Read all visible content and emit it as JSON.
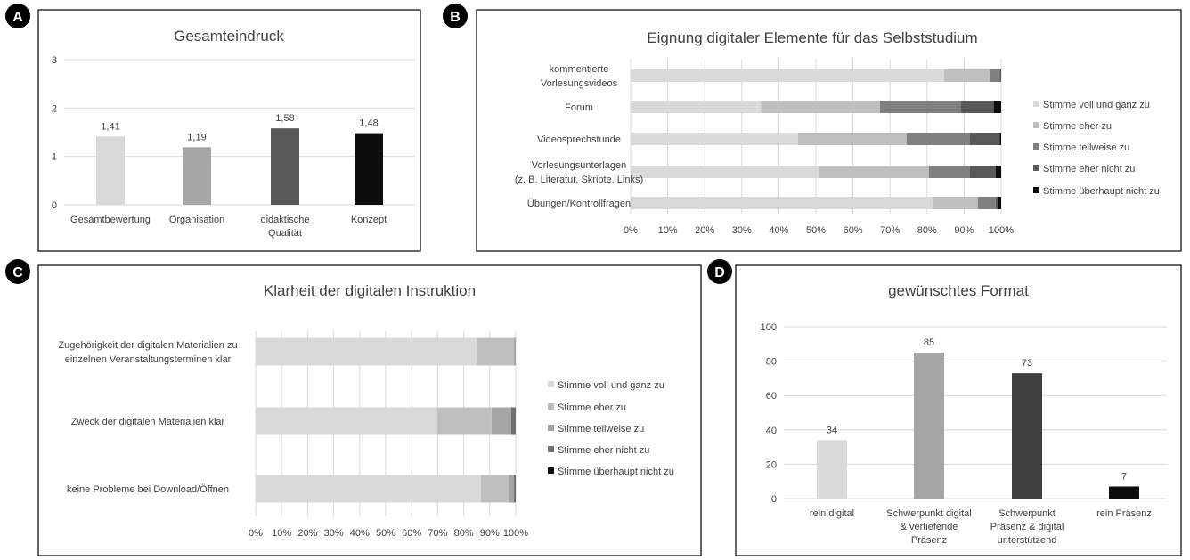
{
  "badges": [
    "A",
    "B",
    "C",
    "D"
  ],
  "chart_data": [
    {
      "id": "A",
      "type": "bar",
      "title": "Gesamteindruck",
      "categories": [
        [
          "Gesamtbewertung"
        ],
        [
          "Organisation"
        ],
        [
          "didaktische",
          "Qualität"
        ],
        [
          "Konzept"
        ]
      ],
      "values": [
        1.41,
        1.19,
        1.58,
        1.48
      ],
      "value_labels": [
        "1,41",
        "1,19",
        "1,58",
        "1,48"
      ],
      "colors": [
        "#d9d9d9",
        "#a6a6a6",
        "#595959",
        "#0d0d0d"
      ],
      "ylim": [
        0,
        3
      ],
      "yticks": [
        0,
        1,
        2,
        3
      ],
      "grid": true
    },
    {
      "id": "B",
      "type": "bar",
      "orientation": "horizontal-stacked-100",
      "title": "Eignung digitaler Elemente für das Selbststudium",
      "categories": [
        [
          "kommentierte",
          "Vorlesungsvideos"
        ],
        [
          "Forum"
        ],
        [
          "Videosprechstunde"
        ],
        [
          "Vorlesungsunterlagen",
          "(z. B. Literatur, Skripte, Links)"
        ],
        [
          "Übungen/Kontrollfragen"
        ]
      ],
      "series": [
        {
          "name": "Stimme voll und ganz zu",
          "color": "#d9d9d9",
          "values": [
            84.6,
            35.2,
            45.2,
            50.8,
            81.5
          ]
        },
        {
          "name": "Stimme eher zu",
          "color": "#bfbfbf",
          "values": [
            12.4,
            32.1,
            29.3,
            29.7,
            12.2
          ]
        },
        {
          "name": "Stimme teilweise zu",
          "color": "#808080",
          "values": [
            2.6,
            21.8,
            17.0,
            11.0,
            4.8
          ]
        },
        {
          "name": "Stimme eher nicht zu",
          "color": "#595959",
          "values": [
            0.4,
            8.9,
            8.1,
            7.0,
            0.7
          ]
        },
        {
          "name": "Stimme überhaupt nicht zu",
          "color": "#0d0d0d",
          "values": [
            0.0,
            2.0,
            0.4,
            1.5,
            0.8
          ]
        }
      ],
      "xticks": [
        "0%",
        "10%",
        "20%",
        "30%",
        "40%",
        "50%",
        "60%",
        "70%",
        "80%",
        "90%",
        "100%"
      ],
      "legend": "right",
      "grid": true
    },
    {
      "id": "C",
      "type": "bar",
      "orientation": "horizontal-stacked-100",
      "title": "Klarheit der digitalen Instruktion",
      "categories": [
        [
          "Zugehörigkeit der digitalen Materialien zu",
          "einzelnen Veranstaltungsterminen klar"
        ],
        [
          "Zweck der digitalen Materialien klar"
        ],
        [
          "keine Probleme bei Download/Öffnen"
        ]
      ],
      "series": [
        {
          "name": "Stimme voll und ganz zu",
          "color": "#d9d9d9",
          "values": [
            84.9,
            69.8,
            86.6
          ]
        },
        {
          "name": "Stimme eher zu",
          "color": "#bfbfbf",
          "values": [
            14.4,
            20.9,
            10.7
          ]
        },
        {
          "name": "Stimme teilweise zu",
          "color": "#a5a5a5",
          "values": [
            0.7,
            7.6,
            2.0
          ]
        },
        {
          "name": "Stimme eher nicht zu",
          "color": "#6f6f6f",
          "values": [
            0.0,
            1.7,
            0.7
          ]
        },
        {
          "name": "Stimme überhaupt nicht zu",
          "color": "#0d0d0d",
          "values": [
            0.0,
            0.0,
            0.0
          ]
        }
      ],
      "xticks": [
        "0%",
        "10%",
        "20%",
        "30%",
        "40%",
        "50%",
        "60%",
        "70%",
        "80%",
        "90%",
        "100%"
      ],
      "legend": "right",
      "grid": true
    },
    {
      "id": "D",
      "type": "bar",
      "title": "gewünschtes Format",
      "categories": [
        [
          "rein digital"
        ],
        [
          "Schwerpunkt digital",
          "& vertiefende",
          "Präsenz"
        ],
        [
          "Schwerpunkt",
          "Präsenz & digital",
          "unterstützend"
        ],
        [
          "rein Präsenz"
        ]
      ],
      "values": [
        34,
        85,
        73,
        7
      ],
      "value_labels": [
        "34",
        "85",
        "73",
        "7"
      ],
      "colors": [
        "#d9d9d9",
        "#a6a6a6",
        "#404040",
        "#0d0d0d"
      ],
      "ylim": [
        0,
        100
      ],
      "yticks": [
        0,
        20,
        40,
        60,
        80,
        100
      ],
      "grid": true
    }
  ]
}
